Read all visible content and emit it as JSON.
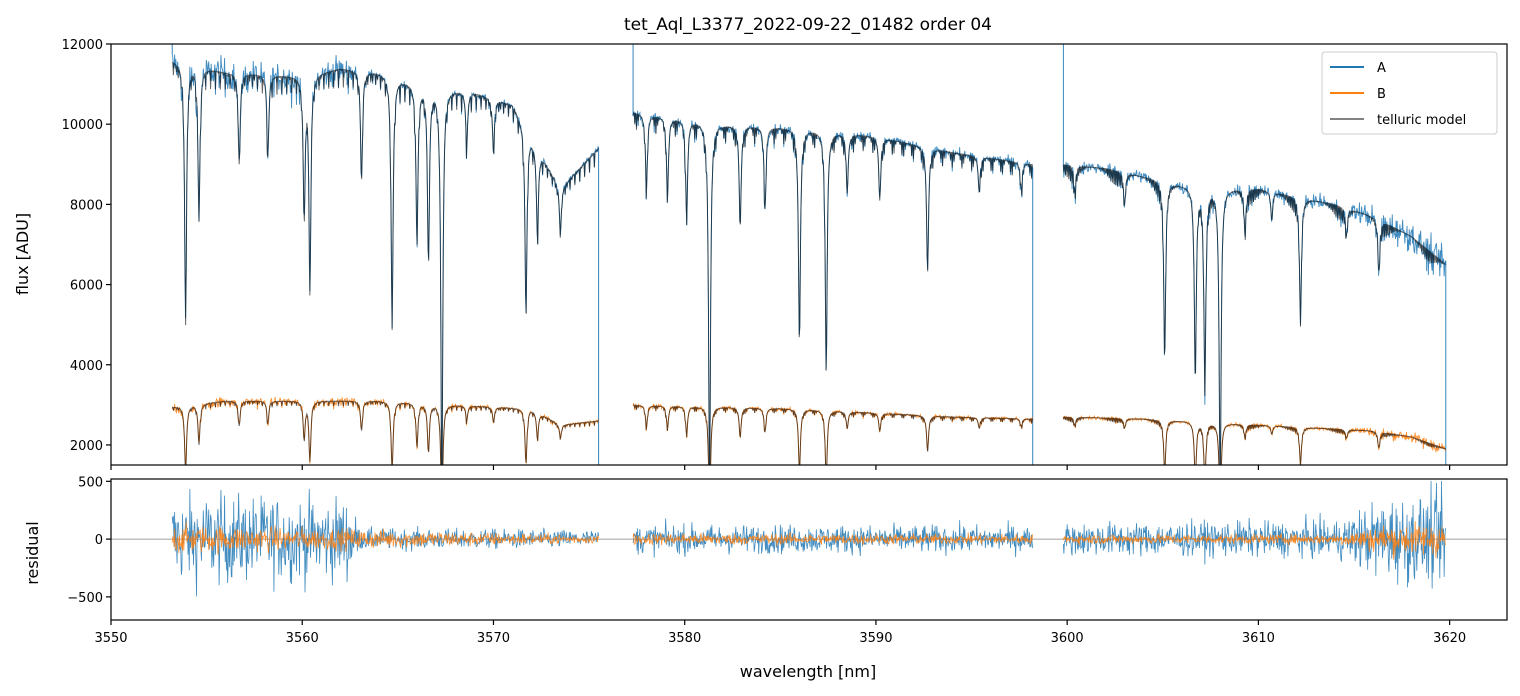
{
  "chart_data": {
    "type": "line",
    "title": "tet_Aql_L3377_2022-09-22_01482  order 04",
    "colors": {
      "A": "#1f77b4",
      "B": "#ff7f0e",
      "telluric_model": "#000000",
      "zero_line": "#808080"
    },
    "legend": {
      "position": "top-right",
      "entries": [
        {
          "key": "A",
          "label": "A"
        },
        {
          "key": "B",
          "label": "B"
        },
        {
          "key": "telluric_model",
          "label": "telluric model"
        }
      ]
    },
    "x_axis": {
      "label": "wavelength [nm]",
      "range": [
        3550,
        3623
      ],
      "ticks": [
        3550,
        3560,
        3570,
        3580,
        3590,
        3600,
        3610,
        3620
      ],
      "tick_labels": [
        "3550",
        "3560",
        "3570",
        "3580",
        "3590",
        "3600",
        "3610",
        "3620"
      ]
    },
    "top_panel": {
      "ylabel": "flux [ADU]",
      "ylim": [
        1500,
        12000
      ],
      "yticks": [
        2000,
        4000,
        6000,
        8000,
        10000,
        12000
      ],
      "ytick_labels": [
        "2000",
        "4000",
        "6000",
        "8000",
        "10000",
        "12000"
      ]
    },
    "bottom_panel": {
      "ylabel": "residual",
      "ylim": [
        -700,
        520
      ],
      "yticks": [
        -500,
        0,
        500
      ],
      "ytick_labels": [
        "−500",
        "0",
        "500"
      ]
    },
    "segments": [
      {
        "x_range": [
          3553.2,
          3575.5
        ],
        "A_continuum": [
          [
            3553.2,
            11600
          ],
          [
            3556,
            11300
          ],
          [
            3560,
            11200
          ],
          [
            3562,
            11400
          ],
          [
            3564,
            11300
          ],
          [
            3566,
            11000
          ],
          [
            3569,
            10800
          ],
          [
            3571,
            10500
          ],
          [
            3573.5,
            8400
          ],
          [
            3575.5,
            9400
          ]
        ],
        "B_continuum": [
          [
            3553.2,
            2950
          ],
          [
            3556,
            3100
          ],
          [
            3560,
            3100
          ],
          [
            3564,
            3100
          ],
          [
            3568,
            3000
          ],
          [
            3572,
            2900
          ],
          [
            3573.5,
            2500
          ],
          [
            3575.5,
            2600
          ]
        ],
        "lines": [
          [
            3553.9,
            5000
          ],
          [
            3554.6,
            7600
          ],
          [
            3556.7,
            9000
          ],
          [
            3558.2,
            9200
          ],
          [
            3560.1,
            7700
          ],
          [
            3560.4,
            5800
          ],
          [
            3563.1,
            8600
          ],
          [
            3564.7,
            4900
          ],
          [
            3566.0,
            7000
          ],
          [
            3566.6,
            6500
          ],
          [
            3567.3,
            700
          ],
          [
            3568.6,
            9500
          ],
          [
            3570.0,
            9300
          ],
          [
            3571.7,
            5200
          ],
          [
            3572.3,
            7200
          ],
          [
            3573.5,
            7300
          ]
        ],
        "A_residual_noise": [
          [
            3553.2,
            500
          ],
          [
            3562.5,
            450
          ],
          [
            3563,
            120
          ],
          [
            3575.5,
            100
          ]
        ],
        "B_residual_noise": [
          [
            3553.2,
            150
          ],
          [
            3575.5,
            40
          ]
        ]
      },
      {
        "x_range": [
          3577.3,
          3598.2
        ],
        "A_continuum": [
          [
            3577.3,
            10300
          ],
          [
            3582,
            10000
          ],
          [
            3586,
            9900
          ],
          [
            3590,
            9700
          ],
          [
            3594,
            9300
          ],
          [
            3598.2,
            9000
          ]
        ],
        "B_continuum": [
          [
            3577.3,
            3000
          ],
          [
            3582,
            2950
          ],
          [
            3586,
            2900
          ],
          [
            3590,
            2800
          ],
          [
            3594,
            2700
          ],
          [
            3598.2,
            2650
          ]
        ],
        "lines": [
          [
            3578.0,
            8400
          ],
          [
            3579.1,
            8200
          ],
          [
            3580.1,
            7700
          ],
          [
            3581.3,
            900
          ],
          [
            3582.9,
            7400
          ],
          [
            3584.2,
            7900
          ],
          [
            3586.0,
            4500
          ],
          [
            3587.4,
            3800
          ],
          [
            3588.5,
            8300
          ],
          [
            3590.2,
            8100
          ],
          [
            3592.7,
            6300
          ],
          [
            3595.4,
            8300
          ],
          [
            3597.6,
            8400
          ]
        ],
        "A_residual_noise": [
          [
            3577.3,
            160
          ],
          [
            3598.2,
            150
          ]
        ],
        "B_residual_noise": [
          [
            3577.3,
            60
          ],
          [
            3598.2,
            50
          ]
        ]
      },
      {
        "x_range": [
          3599.8,
          3619.8
        ],
        "A_continuum": [
          [
            3599.8,
            9000
          ],
          [
            3602,
            8900
          ],
          [
            3604,
            8700
          ],
          [
            3606,
            8500
          ],
          [
            3608,
            8400
          ],
          [
            3610,
            8400
          ],
          [
            3612,
            8200
          ],
          [
            3614,
            8000
          ],
          [
            3616,
            7700
          ],
          [
            3618,
            7200
          ],
          [
            3619.8,
            6500
          ]
        ],
        "B_continuum": [
          [
            3599.8,
            2700
          ],
          [
            3604,
            2650
          ],
          [
            3608,
            2550
          ],
          [
            3612,
            2450
          ],
          [
            3616,
            2350
          ],
          [
            3618,
            2200
          ],
          [
            3619.8,
            1900
          ]
        ],
        "lines": [
          [
            3600.4,
            8300
          ],
          [
            3603.0,
            8000
          ],
          [
            3605.1,
            4200
          ],
          [
            3606.7,
            3600
          ],
          [
            3607.2,
            3400
          ],
          [
            3608.0,
            900
          ],
          [
            3609.3,
            7300
          ],
          [
            3610.7,
            7600
          ],
          [
            3612.2,
            5100
          ],
          [
            3614.6,
            7200
          ],
          [
            3616.3,
            6300
          ]
        ],
        "A_residual_noise": [
          [
            3599.8,
            180
          ],
          [
            3614,
            200
          ],
          [
            3616.5,
            450
          ],
          [
            3619.8,
            500
          ]
        ],
        "B_residual_noise": [
          [
            3599.8,
            50
          ],
          [
            3614,
            50
          ],
          [
            3616.5,
            150
          ],
          [
            3619.8,
            180
          ]
        ]
      }
    ]
  }
}
